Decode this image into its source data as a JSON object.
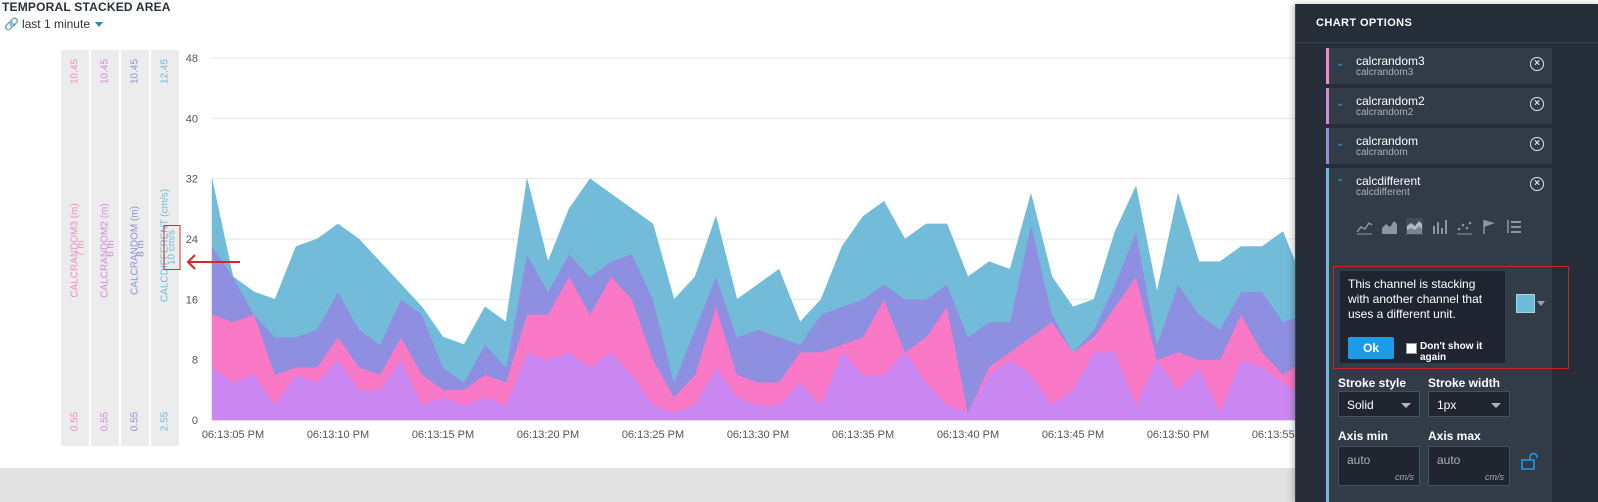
{
  "header": {
    "title": "TEMPORAL STACKED AREA",
    "time_range": "last 1 minute"
  },
  "axis_strips": [
    {
      "label": "CALCRANDOM3 (m)",
      "mid": "7 m",
      "max": "10.45",
      "min": "0.55",
      "color": "#f48ac8"
    },
    {
      "label": "CALCRANDOM2 (m)",
      "mid": "6 m",
      "max": "10.45",
      "min": "0.55",
      "color": "#d58ad8"
    },
    {
      "label": "CALCRANDOM (m)",
      "mid": "8 m",
      "max": "10.45",
      "min": "0.55",
      "color": "#8d8fd8"
    },
    {
      "label": "CALCDIFFERENT (cm/s)",
      "mid": "10 cm/s",
      "max": "12.45",
      "min": "2.55",
      "color": "#6bbbd9"
    }
  ],
  "chart_data": {
    "type": "area",
    "stacked": true,
    "ylim": [
      0,
      48
    ],
    "yticks": [
      0,
      8,
      16,
      24,
      32,
      40,
      48
    ],
    "x_start_seconds": 4,
    "x_step_seconds": 1,
    "xticks": [
      "06:13:05 PM",
      "06:13:10 PM",
      "06:13:15 PM",
      "06:13:20 PM",
      "06:13:25 PM",
      "06:13:30 PM",
      "06:13:35 PM",
      "06:13:40 PM",
      "06:13:45 PM",
      "06:13:50 PM",
      "06:13:55 PM"
    ],
    "grid": true,
    "series": [
      {
        "name": "calcrandom2",
        "color": "#cc88f2",
        "values": [
          7,
          5,
          6,
          2,
          6,
          5,
          8,
          4,
          4,
          8,
          2,
          3,
          2,
          3,
          2,
          9,
          8,
          9,
          7,
          9,
          6,
          2,
          1,
          2,
          7,
          3,
          2,
          2,
          5,
          2,
          9,
          6,
          6,
          9,
          5,
          2,
          1,
          6,
          8,
          6,
          2,
          4,
          9,
          9,
          2,
          8,
          4,
          7,
          1,
          8,
          7,
          5,
          3,
          4,
          2,
          3
        ]
      },
      {
        "name": "calcrandom3",
        "color": "#f979c6",
        "values": [
          7,
          8,
          8,
          4,
          1,
          2,
          3,
          3,
          2,
          3,
          4,
          1,
          2,
          3,
          3,
          5,
          6,
          10,
          7,
          10,
          10,
          6,
          2,
          4,
          8,
          3,
          3,
          3,
          4,
          7,
          1,
          5,
          10,
          0,
          6,
          13,
          0,
          1,
          1,
          5,
          11,
          5,
          2,
          6,
          17,
          0,
          5,
          1,
          7,
          6,
          2,
          1,
          5,
          9,
          4,
          5
        ]
      },
      {
        "name": "calcrandom",
        "color": "#8e8fe0",
        "values": [
          9,
          6,
          0,
          5,
          4,
          5,
          6,
          5,
          4,
          5,
          8,
          3,
          1,
          4,
          2,
          8,
          3,
          3,
          5,
          2,
          6,
          8,
          2,
          6,
          4,
          5,
          7,
          6,
          1,
          5,
          5,
          5,
          2,
          7,
          5,
          3,
          10,
          6,
          4,
          15,
          1,
          0,
          1,
          3,
          6,
          2,
          9,
          6,
          4,
          3,
          8,
          7,
          6,
          2,
          6,
          4
        ]
      },
      {
        "name": "calcdifferent",
        "color": "#72bcda",
        "values": [
          9,
          0,
          3,
          5,
          12,
          12,
          9,
          12,
          11,
          2,
          1,
          4,
          5,
          5,
          6,
          10,
          4,
          6,
          13,
          9,
          6,
          10,
          11,
          7,
          8,
          5,
          6,
          9,
          3,
          2,
          8,
          11,
          11,
          8,
          10,
          8,
          8,
          8,
          7,
          4,
          5,
          6,
          4,
          7,
          6,
          7,
          12,
          7,
          9,
          6,
          6,
          12,
          4,
          5,
          8,
          5
        ]
      }
    ]
  },
  "panel": {
    "title": "CHART OPTIONS",
    "channels": [
      {
        "name": "calcrandom3",
        "sub": "calcrandom3",
        "color": "#f48ac8"
      },
      {
        "name": "calcrandom2",
        "sub": "calcrandom2",
        "color": "#d58ad8"
      },
      {
        "name": "calcrandom",
        "sub": "calcrandom",
        "color": "#8d8fd8"
      },
      {
        "name": "calcdifferent",
        "sub": "calcdifferent",
        "color": "#6bbbd9"
      }
    ],
    "chart_type_icons": [
      "line-chart-icon",
      "area-chart-icon",
      "stacked-area-icon",
      "bar-chart-icon",
      "scatter-icon",
      "flag-icon",
      "list-icon"
    ],
    "warning": {
      "message": "This channel is stacking with another channel that uses a different unit.",
      "ok": "Ok",
      "checkbox_label": "Don't show it again"
    },
    "stroke_style_label": "Stroke style",
    "stroke_style_value": "Solid",
    "stroke_width_label": "Stroke width",
    "stroke_width_value": "1px",
    "axis_min_label": "Axis min",
    "axis_min_placeholder": "auto",
    "axis_max_label": "Axis max",
    "axis_max_placeholder": "auto",
    "unit": "cm/s"
  }
}
